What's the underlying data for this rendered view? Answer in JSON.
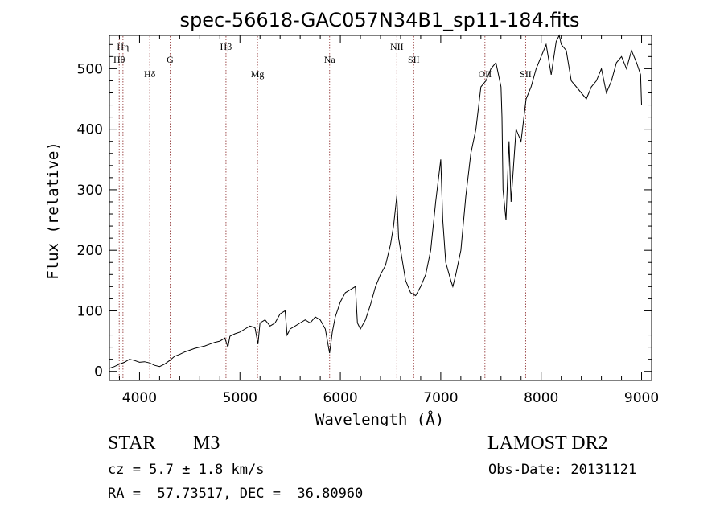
{
  "chart_data": {
    "type": "line",
    "title": "spec-56618-GAC057N34B1_sp11-184.fits",
    "xlabel": "Wavelength (Å)",
    "ylabel": "Flux (relative)",
    "xlim": [
      3700,
      9100
    ],
    "ylim": [
      -15,
      555
    ],
    "xticks": [
      4000,
      5000,
      6000,
      7000,
      8000,
      9000
    ],
    "yticks": [
      0,
      100,
      200,
      300,
      400,
      500
    ],
    "grid": false,
    "series": [
      {
        "x": [
          3700,
          3750,
          3800,
          3850,
          3900,
          3950,
          4000,
          4050,
          4100,
          4150,
          4200,
          4250,
          4300,
          4350,
          4400,
          4450,
          4500,
          4550,
          4600,
          4650,
          4700,
          4750,
          4800,
          4850,
          4880,
          4900,
          4950,
          5000,
          5050,
          5100,
          5150,
          5180,
          5200,
          5250,
          5300,
          5350,
          5400,
          5450,
          5470,
          5500,
          5550,
          5600,
          5650,
          5700,
          5750,
          5800,
          5850,
          5893,
          5920,
          5950,
          6000,
          6050,
          6100,
          6150,
          6170,
          6200,
          6250,
          6300,
          6350,
          6400,
          6450,
          6500,
          6530,
          6563,
          6580,
          6600,
          6650,
          6700,
          6750,
          6800,
          6850,
          6900,
          6950,
          7000,
          7020,
          7050,
          7100,
          7120,
          7150,
          7200,
          7250,
          7300,
          7350,
          7400,
          7450,
          7500,
          7550,
          7600,
          7610,
          7620,
          7650,
          7680,
          7700,
          7750,
          7800,
          7850,
          7900,
          7950,
          8000,
          8050,
          8100,
          8150,
          8180,
          8200,
          8250,
          8300,
          8350,
          8400,
          8450,
          8500,
          8550,
          8600,
          8650,
          8700,
          8750,
          8800,
          8850,
          8900,
          8950,
          8990,
          9000
        ],
        "y": [
          5,
          8,
          12,
          15,
          20,
          18,
          15,
          16,
          14,
          10,
          8,
          12,
          18,
          25,
          28,
          32,
          35,
          38,
          40,
          42,
          45,
          48,
          50,
          55,
          40,
          58,
          62,
          65,
          70,
          75,
          72,
          45,
          80,
          85,
          75,
          80,
          95,
          100,
          60,
          70,
          75,
          80,
          85,
          80,
          90,
          85,
          70,
          30,
          65,
          90,
          115,
          130,
          135,
          140,
          80,
          70,
          85,
          110,
          140,
          160,
          175,
          210,
          240,
          290,
          220,
          200,
          150,
          130,
          125,
          140,
          160,
          200,
          280,
          350,
          250,
          180,
          150,
          140,
          160,
          200,
          290,
          360,
          400,
          470,
          480,
          500,
          510,
          470,
          420,
          300,
          250,
          380,
          280,
          400,
          380,
          450,
          470,
          500,
          520,
          540,
          490,
          545,
          555,
          540,
          530,
          480,
          470,
          460,
          450,
          470,
          480,
          500,
          460,
          480,
          510,
          520,
          500,
          530,
          510,
          490,
          440
        ]
      }
    ],
    "lines": [
      {
        "label": "Hη",
        "x": 3835,
        "row": 1
      },
      {
        "label": "Hθ",
        "x": 3798,
        "row": 2
      },
      {
        "label": "Hδ",
        "x": 4102,
        "row": 3
      },
      {
        "label": "G",
        "x": 4305,
        "row": 2
      },
      {
        "label": "Hβ",
        "x": 4861,
        "row": 1
      },
      {
        "label": "Mg",
        "x": 5175,
        "row": 3
      },
      {
        "label": "Na",
        "x": 5893,
        "row": 2
      },
      {
        "label": "NII",
        "x": 6563,
        "row": 1
      },
      {
        "label": "SII",
        "x": 6731,
        "row": 2
      },
      {
        "label": "OII",
        "x": 7440,
        "row": 3
      },
      {
        "label": "SII",
        "x": 7846,
        "row": 3
      }
    ]
  },
  "info": {
    "class_label": "STAR",
    "subclass": "M3",
    "cz": "cz = 5.7 ± 1.8 km/s",
    "radec": "RA =  57.73517, DEC =  36.80960",
    "survey": "LAMOST DR2",
    "obsdate": "Obs-Date: 20131121"
  }
}
